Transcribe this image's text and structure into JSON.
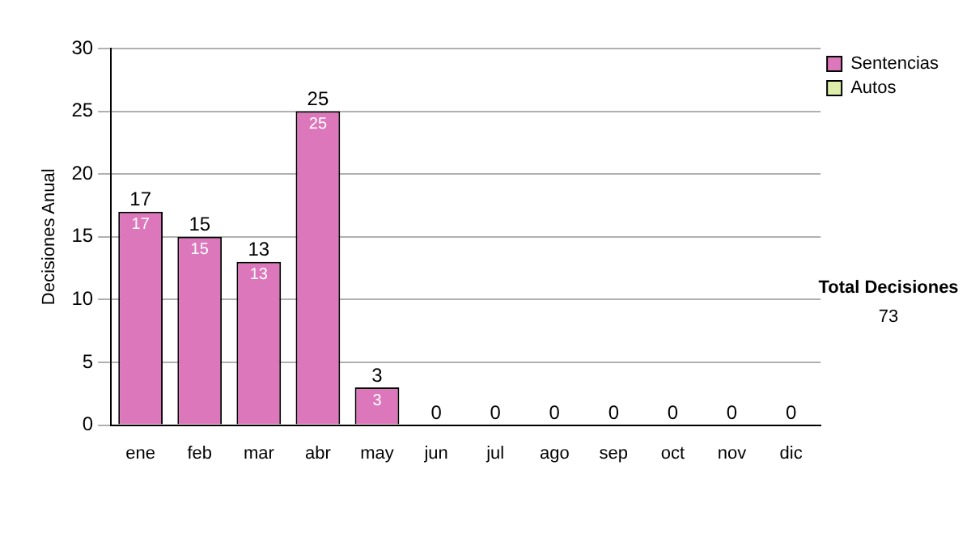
{
  "chart_data": {
    "type": "bar",
    "ylabel": "Decisiones Anual",
    "categories": [
      "ene",
      "feb",
      "mar",
      "abr",
      "may",
      "jun",
      "jul",
      "ago",
      "sep",
      "oct",
      "nov",
      "dic"
    ],
    "series": [
      {
        "name": "Sentencias",
        "color": "#dd77bb",
        "values": [
          17,
          15,
          13,
          25,
          3,
          0,
          0,
          0,
          0,
          0,
          0,
          0
        ],
        "value_labels": [
          "17",
          "15",
          "13",
          "25",
          "3",
          null,
          null,
          null,
          null,
          null,
          null,
          null
        ]
      },
      {
        "name": "Autos",
        "color": "#ddeeaa",
        "values": [
          0,
          0,
          0,
          0,
          0,
          0,
          0,
          0,
          0,
          0,
          0,
          0
        ]
      }
    ],
    "stacked": true,
    "totals": [
      "17",
      "15",
      "13",
      "25",
      "3",
      "0",
      "0",
      "0",
      "0",
      "0",
      "0",
      "0"
    ],
    "ylim": [
      0,
      30
    ],
    "yticks": [
      0,
      5,
      10,
      15,
      20,
      25,
      30
    ],
    "grid": "y",
    "legend": "right",
    "annotations": [
      "Total Decisiones",
      "73"
    ]
  }
}
